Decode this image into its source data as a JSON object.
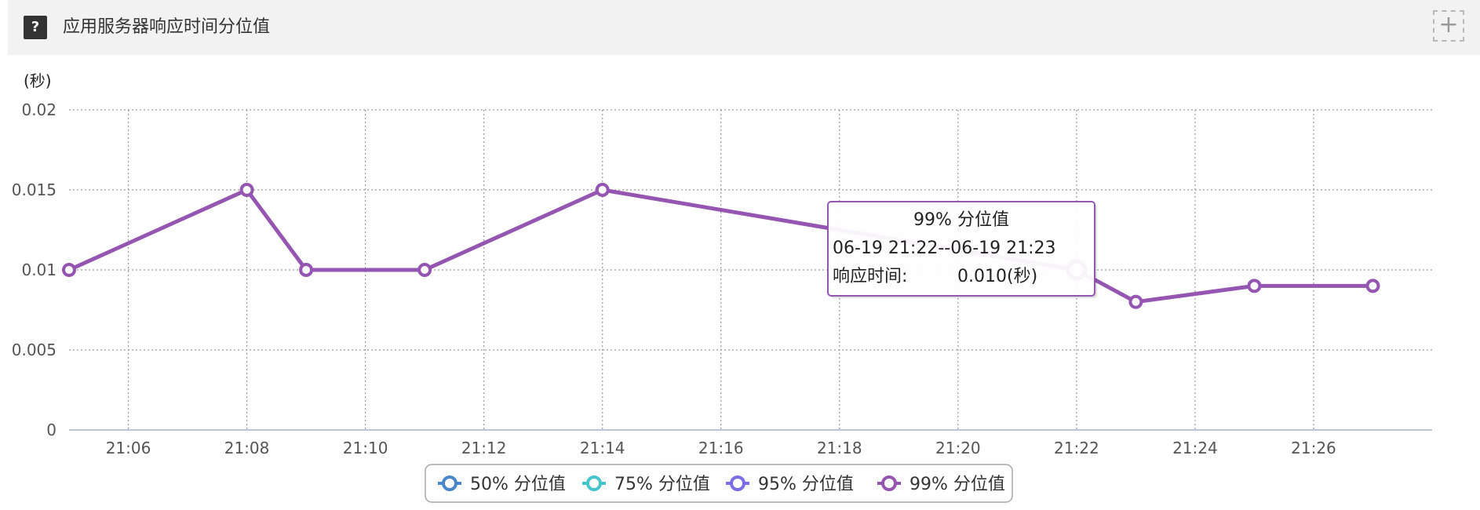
{
  "panel": {
    "help_icon": "question-icon",
    "title": "应用服务器响应时间分位值",
    "expand_icon": "plus-icon",
    "expand_symbol": "+"
  },
  "chart_data": {
    "type": "line",
    "y_unit": "(秒)",
    "ylim": [
      0,
      0.02
    ],
    "y_ticks": [
      0,
      0.005,
      0.01,
      0.015,
      0.02
    ],
    "y_tick_labels": [
      "0",
      "0.005",
      "0.01",
      "0.015",
      "0.02"
    ],
    "x_ticks": [
      "21:06",
      "21:08",
      "21:10",
      "21:12",
      "21:14",
      "21:16",
      "21:18",
      "21:20",
      "21:22",
      "21:24",
      "21:26"
    ],
    "xlim": [
      "21:05",
      "21:28"
    ],
    "grid": true,
    "legend_position": "bottom-center",
    "series": [
      {
        "name": "50% 分位值",
        "color": "#4a87c8",
        "x": [],
        "values": []
      },
      {
        "name": "75% 分位值",
        "color": "#47c4c9",
        "x": [],
        "values": []
      },
      {
        "name": "95% 分位值",
        "color": "#7b6ee6",
        "x": [],
        "values": []
      },
      {
        "name": "99% 分位值",
        "color": "#9456b0",
        "x": [
          "21:05",
          "21:08",
          "21:09",
          "21:11",
          "21:14",
          "21:22",
          "21:23",
          "21:25",
          "21:27"
        ],
        "values": [
          0.01,
          0.015,
          0.01,
          0.01,
          0.015,
          0.01,
          0.008,
          0.009,
          0.009
        ]
      }
    ],
    "tooltip": {
      "series_index": 3,
      "point_index": 5,
      "title": "99% 分位值",
      "range": "06-19 21:22--06-19 21:23",
      "label": "响应时间:",
      "value": "0.010(秒)"
    }
  }
}
